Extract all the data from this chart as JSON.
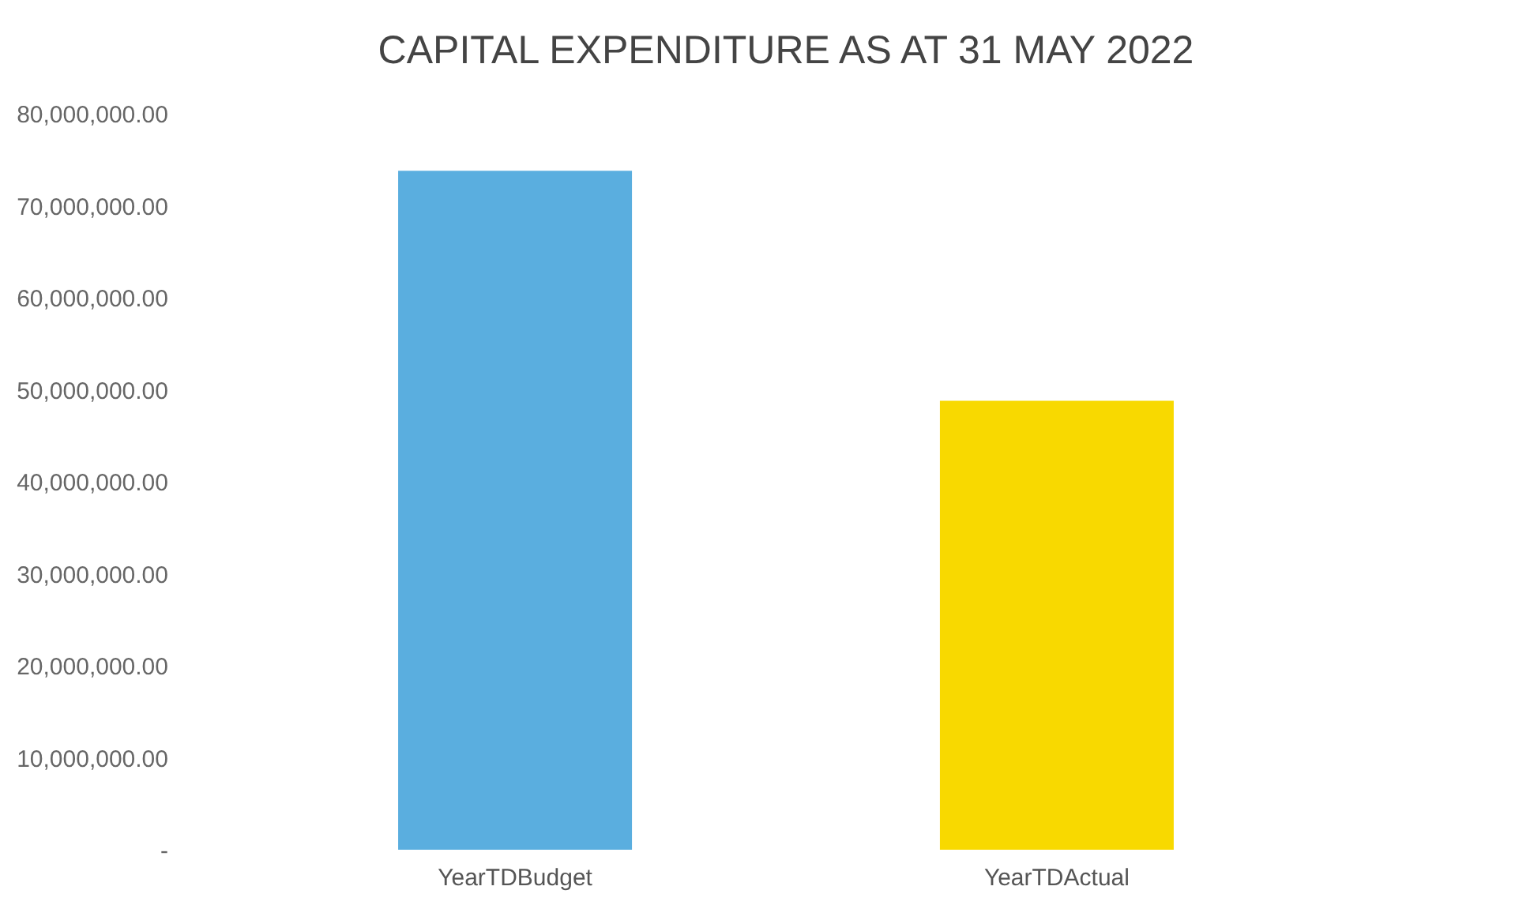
{
  "chart_data": {
    "type": "bar",
    "title": "CAPITAL EXPENDITURE AS AT 31 MAY 2022",
    "categories": [
      "YearTDBudget",
      "YearTDActual"
    ],
    "values": [
      73800000,
      48800000
    ],
    "colors": [
      "#5aaedf",
      "#f8d900"
    ],
    "ylim": [
      0,
      80000000
    ],
    "yticks": [
      {
        "value": 0,
        "label": "-"
      },
      {
        "value": 10000000,
        "label": "10,000,000.00"
      },
      {
        "value": 20000000,
        "label": "20,000,000.00"
      },
      {
        "value": 30000000,
        "label": "30,000,000.00"
      },
      {
        "value": 40000000,
        "label": "40,000,000.00"
      },
      {
        "value": 50000000,
        "label": "50,000,000.00"
      },
      {
        "value": 60000000,
        "label": "60,000,000.00"
      },
      {
        "value": 70000000,
        "label": "70,000,000.00"
      },
      {
        "value": 80000000,
        "label": "80,000,000.00"
      }
    ],
    "grid": false
  }
}
